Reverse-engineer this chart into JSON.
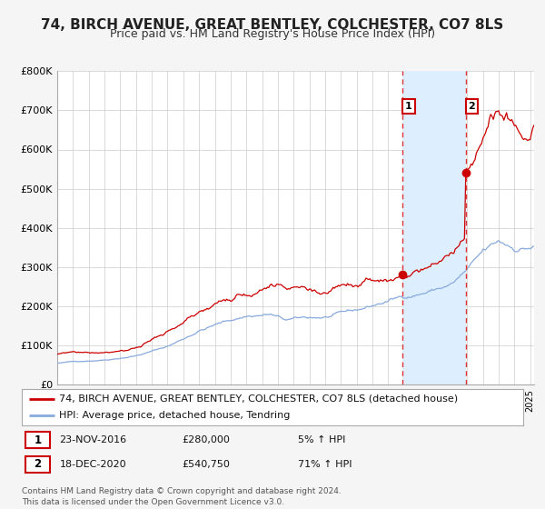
{
  "title": "74, BIRCH AVENUE, GREAT BENTLEY, COLCHESTER, CO7 8LS",
  "subtitle": "Price paid vs. HM Land Registry's House Price Index (HPI)",
  "legend_line1": "74, BIRCH AVENUE, GREAT BENTLEY, COLCHESTER, CO7 8LS (detached house)",
  "legend_line2": "HPI: Average price, detached house, Tendring",
  "annotation1_date": "23-NOV-2016",
  "annotation1_price": "£280,000",
  "annotation1_hpi": "5% ↑ HPI",
  "annotation2_date": "18-DEC-2020",
  "annotation2_price": "£540,750",
  "annotation2_hpi": "71% ↑ HPI",
  "footnote": "Contains HM Land Registry data © Crown copyright and database right 2024.\nThis data is licensed under the Open Government Licence v3.0.",
  "sale1_date_num": 2016.917,
  "sale1_price": 280000,
  "sale2_date_num": 2020.958,
  "sale2_price": 540750,
  "ylim": [
    0,
    800000
  ],
  "xlim_start": 1995.0,
  "xlim_end": 2025.25,
  "background_color": "#f5f5f5",
  "plot_bg_color": "#ffffff",
  "grid_color": "#cccccc",
  "red_line_color": "#cc0000",
  "blue_line_color": "#88aadd",
  "dashed_line_color": "#dd3333",
  "highlight_color": "#ddeeff",
  "marker_color": "#cc0000",
  "title_fontsize": 11,
  "subtitle_fontsize": 9,
  "legend_fontsize": 8,
  "tick_fontsize": 8
}
